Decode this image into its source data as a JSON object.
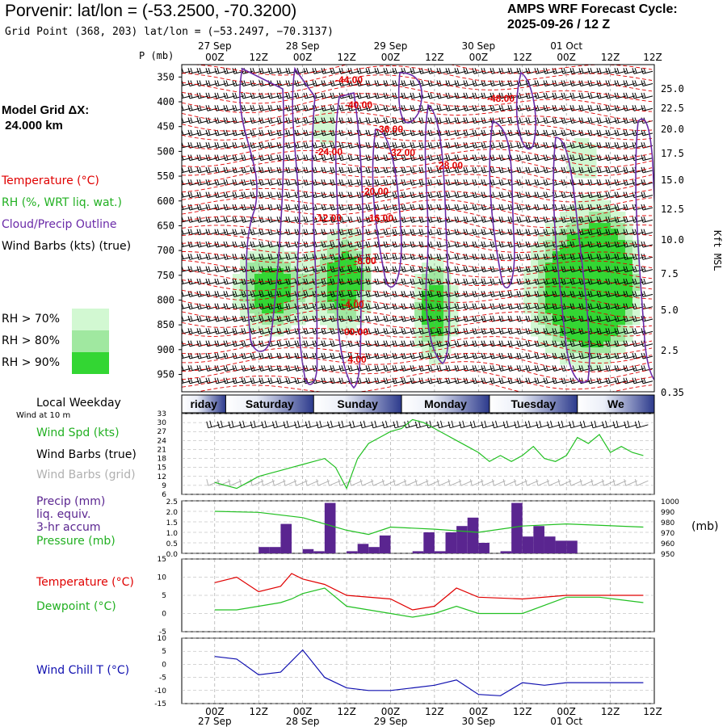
{
  "header": {
    "title": "Porvenir:  lat/lon = (-53.2500, -70.3200)",
    "grid_point": "Grid Point (368, 203) lat/lon = (−53.2497, −70.3137)",
    "cycle_line1": "AMPS WRF Forecast Cycle:",
    "cycle_line2": "2025-09-26 / 12  Z",
    "model_grid_line1": "Model Grid ΔX:",
    "model_grid_line2": " 24.000 km"
  },
  "legend": {
    "temperature": "Temperature (°C)",
    "rh": "RH (%, WRT liq. wat.)",
    "cloud": "Cloud/Precip Outline",
    "wind": "Wind Barbs (kts) (true)",
    "rh70": "RH > 70%",
    "rh80": "RH > 80%",
    "rh90": "RH > 90%",
    "rh70_color": "#d2f8d2",
    "rh80_color": "#a0e8a0",
    "rh90_color": "#33d633"
  },
  "panel_labels": {
    "p_mb": "P (mb)",
    "kft": "Kft MSL",
    "local_weekday": "Local Weekday",
    "wind_at_10m": "Wind at 10 m",
    "wind_spd": "Wind Spd (kts)",
    "wind_barbs_true": "Wind Barbs (true)",
    "wind_barbs_grid": "Wind Barbs (grid)",
    "precip_1": "Precip (mm)",
    "precip_2": "liq. equiv.",
    "precip_3": "3-hr accum",
    "pressure": "Pressure (mb)",
    "pressure_unit": "(mb)",
    "temperature": "Temperature (°C)",
    "dewpoint": "Dewpoint (°C)",
    "wind_chill": "Wind Chill T (°C)"
  },
  "colors": {
    "temp": "#e00000",
    "dew": "#22c022",
    "precip": "#5a2590",
    "cloud": "#6a2aa8",
    "chill": "#1010b0",
    "grid_barb": "#b0b0b0"
  },
  "time_axis": {
    "hour_labels": [
      "00Z",
      "12Z",
      "00Z",
      "12Z",
      "00Z",
      "12Z",
      "00Z",
      "12Z",
      "00Z",
      "12Z"
    ],
    "date_labels": [
      "27 Sep",
      "28 Sep",
      "29 Sep",
      "30 Sep",
      "01 Oct"
    ],
    "weekdays": [
      "riday",
      "Saturday",
      "Sunday",
      "Monday",
      "Tuesday",
      "We"
    ]
  },
  "cross_section": {
    "pressure_levels": [
      "350",
      "400",
      "450",
      "500",
      "550",
      "600",
      "650",
      "700",
      "750",
      "800",
      "850",
      "900",
      "950"
    ],
    "height_kft": [
      "25.0",
      "22.5",
      "20.0",
      "17.5",
      "15.0",
      "12.5",
      "10.0",
      "7.5",
      "5.0",
      "2.5",
      "0.35"
    ],
    "temp_labels": [
      "-44.00",
      "-40.00",
      "-36.00",
      "-32.00",
      "-28.00",
      "-48.00",
      "-24.00",
      "-20.00",
      "-16.00",
      "-12.00",
      "-8.00",
      "-4.00",
      "00.00",
      "4.00"
    ]
  },
  "chart_data": [
    {
      "type": "line",
      "title": "Wind Spd (kts)",
      "x": [
        0,
        3,
        6,
        9,
        12,
        15,
        18,
        21,
        24,
        27,
        30,
        33,
        36,
        39,
        42,
        45,
        48,
        51,
        54,
        57,
        60,
        63,
        66,
        69,
        72,
        75,
        78,
        81,
        84,
        87,
        90,
        93,
        96,
        99,
        102,
        105,
        108,
        111,
        114,
        117
      ],
      "series": [
        {
          "name": "Wind Spd (kts)",
          "values": [
            10,
            9,
            8,
            10,
            12,
            13,
            14,
            15,
            16,
            17,
            18,
            15,
            8,
            18,
            23,
            25,
            27,
            28,
            31,
            30,
            28,
            26,
            24,
            22,
            20,
            17,
            19,
            17,
            19,
            22,
            18,
            17,
            19,
            25,
            23,
            26,
            20,
            22,
            20,
            19
          ]
        }
      ],
      "ylim": [
        6,
        33
      ],
      "yticks": [
        "33",
        "30",
        "27",
        "24",
        "21",
        "18",
        "15",
        "12",
        "9",
        "6"
      ]
    },
    {
      "type": "bar",
      "title": "Precip (mm) liq. equiv. 3-hr accum",
      "x": [
        12,
        15,
        18,
        24,
        27,
        30,
        36,
        39,
        42,
        45,
        54,
        57,
        60,
        63,
        66,
        69,
        72,
        78,
        81,
        84,
        87,
        90,
        93,
        96
      ],
      "values": [
        0.3,
        0.3,
        1.4,
        0.2,
        0.1,
        2.4,
        0.1,
        0.45,
        0.3,
        0.85,
        0.1,
        1.0,
        0.1,
        1.0,
        1.3,
        1.7,
        0.5,
        0.1,
        2.4,
        0.8,
        1.3,
        0.8,
        0.6,
        0.6
      ],
      "ylim": [
        0,
        2.5
      ],
      "yticks": [
        "2.5",
        "2.0",
        "1.5",
        "1.0",
        "0.5",
        "0.0"
      ]
    },
    {
      "type": "line",
      "title": "Pressure (mb)",
      "x": [
        0,
        12,
        24,
        36,
        42,
        48,
        60,
        72,
        84,
        96,
        117
      ],
      "series": [
        {
          "name": "Pressure (mb)",
          "values": [
            990,
            989,
            984,
            972,
            968,
            975,
            973,
            970,
            976,
            978,
            975
          ]
        }
      ],
      "ylim": [
        950,
        1000
      ],
      "yticks": [
        "1000",
        "990",
        "980",
        "970",
        "960",
        "950"
      ]
    },
    {
      "type": "line",
      "title": "Temperature / Dewpoint (°C)",
      "x": [
        0,
        6,
        12,
        18,
        21,
        24,
        30,
        36,
        48,
        54,
        60,
        66,
        72,
        84,
        96,
        105,
        117
      ],
      "series": [
        {
          "name": "Temperature (°C)",
          "values": [
            8.5,
            10,
            6,
            7.5,
            11,
            9.5,
            8,
            5,
            4,
            1,
            2,
            7,
            4.5,
            4,
            5,
            5,
            5
          ]
        },
        {
          "name": "Dewpoint (°C)",
          "values": [
            1,
            1,
            2,
            3,
            4,
            5.5,
            7,
            2,
            0,
            -1,
            0,
            2,
            0,
            0,
            4.5,
            4.5,
            3
          ]
        }
      ],
      "ylim": [
        -5,
        15
      ],
      "yticks": [
        "15",
        "10",
        "5",
        "0",
        "-5"
      ]
    },
    {
      "type": "line",
      "title": "Wind Chill T (°C)",
      "x": [
        0,
        6,
        12,
        18,
        24,
        30,
        36,
        42,
        48,
        54,
        60,
        66,
        72,
        78,
        84,
        90,
        96,
        105,
        117
      ],
      "series": [
        {
          "name": "Wind Chill T (°C)",
          "values": [
            3,
            2,
            -4,
            -3,
            5.5,
            -5,
            -9,
            -10,
            -10,
            -9,
            -8,
            -6,
            -11.5,
            -12,
            -7,
            -8,
            -7,
            -7,
            -7
          ]
        }
      ],
      "ylim": [
        -15,
        10
      ],
      "yticks": [
        "10",
        "5",
        "0",
        "-5",
        "-10",
        "-15"
      ]
    }
  ]
}
